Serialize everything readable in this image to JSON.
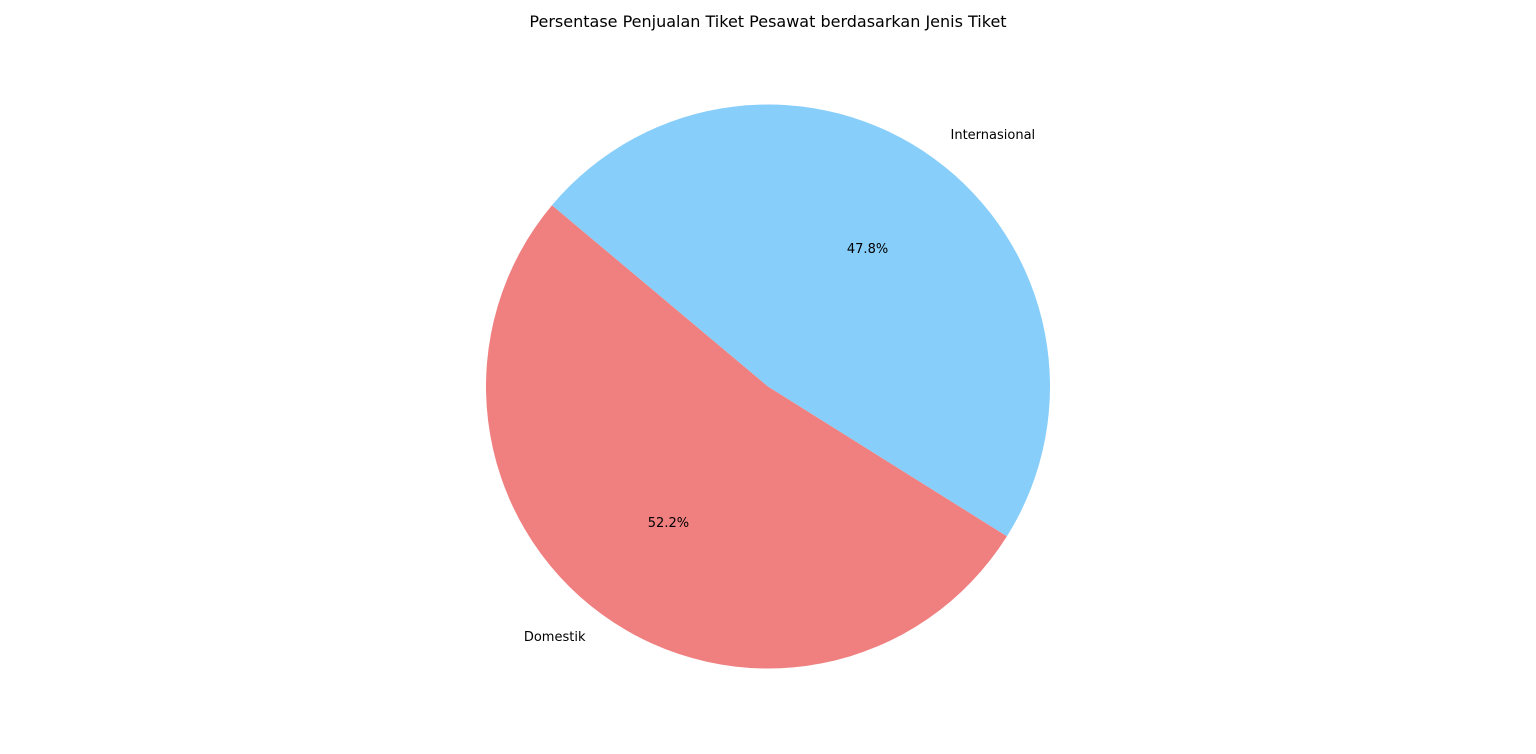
{
  "chart_data": {
    "type": "pie",
    "title": "Persentase Penjualan Tiket Pesawat berdasarkan Jenis Tiket",
    "slices": [
      {
        "label": "Domestik",
        "value": 52.2,
        "pct_label": "52.2%",
        "color": "#F08080"
      },
      {
        "label": "Internasional",
        "value": 47.8,
        "pct_label": "47.8%",
        "color": "#87CEFA"
      }
    ],
    "start_angle_deg": 140,
    "direction": "counterclockwise",
    "legend": "none"
  }
}
